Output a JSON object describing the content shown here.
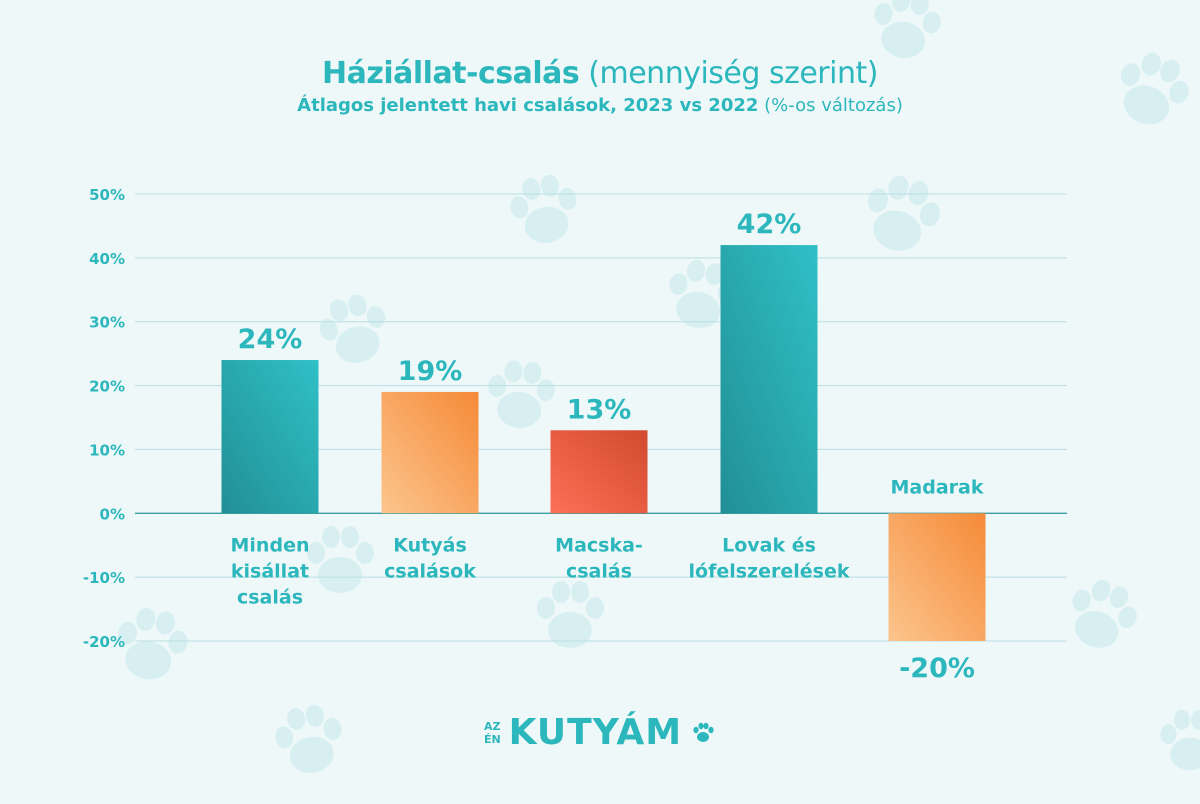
{
  "header": {
    "title_main": "Háziállat-csalás",
    "title_sub": "(mennyiség szerint)",
    "subtitle_main": "Átlagos jelentett havi csalások, 2023 vs 2022",
    "subtitle_sub": "(%-os változás)"
  },
  "brand": {
    "small_top": "AZ",
    "small_bottom": "ÉN",
    "name": "KUTYÁM",
    "icon": "paw-icon"
  },
  "colors": {
    "background": "#eef8f9",
    "text": "#2cb7bd",
    "gridline": "#b9dfe2",
    "zero_line": "#3a9da3",
    "paw_decor": "#d8eff2"
  },
  "chart_data": {
    "type": "bar",
    "categories": [
      "Minden kisállat csalás",
      "Kutyás csalások",
      "Macska-csalás",
      "Lovak és lófelszerelések",
      "Madarak"
    ],
    "category_lines": [
      [
        "Minden",
        "kisállat",
        "csalás"
      ],
      [
        "Kutyás",
        "csalások"
      ],
      [
        "Macska-",
        "csalás"
      ],
      [
        "Lovak és",
        "lófelszerelések"
      ],
      [
        "Madarak"
      ]
    ],
    "values": [
      24,
      19,
      13,
      42,
      -20
    ],
    "value_labels": [
      "24%",
      "19%",
      "13%",
      "42%",
      "-20%"
    ],
    "bar_colors": [
      [
        "#2fc0c6",
        "#218f95"
      ],
      [
        "#f58a38",
        "#fcc58d"
      ],
      [
        "#d24a2e",
        "#fb7157"
      ],
      [
        "#2fc0c6",
        "#218f95"
      ],
      [
        "#f58a38",
        "#fcc58d"
      ]
    ],
    "yticks": [
      50,
      40,
      30,
      20,
      10,
      0,
      -10,
      -20
    ],
    "ytick_labels": [
      "50%",
      "40%",
      "30%",
      "20%",
      "10%",
      "0%",
      "-10%",
      "-20%"
    ],
    "ylim": [
      -20,
      50
    ],
    "grid": true,
    "legend": "none"
  }
}
